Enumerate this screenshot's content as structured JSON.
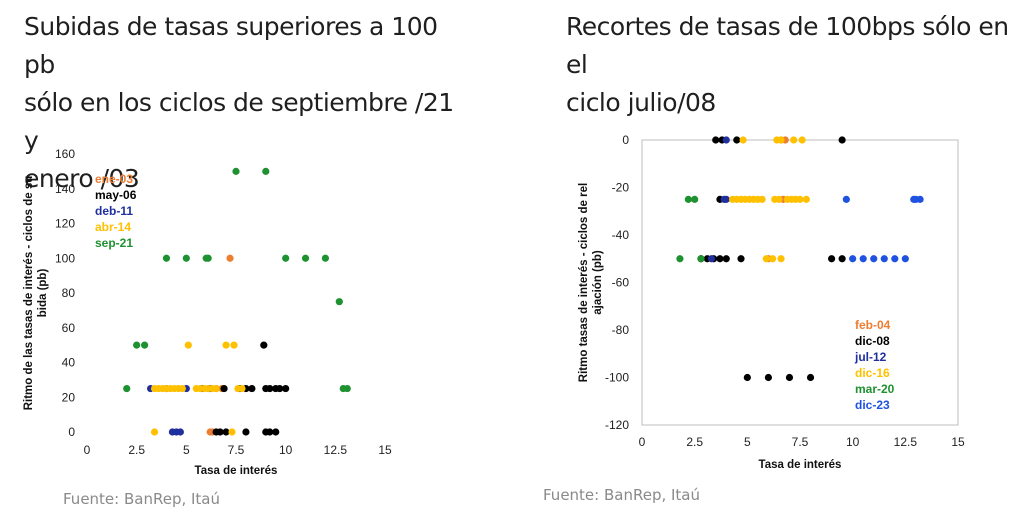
{
  "left": {
    "title": "Subidas de tasas superiores a 100 pb\nsólo en los ciclos de septiembre /21 y\nenero /03",
    "source": "Fuente: BanRep, Itaú",
    "chart_data": {
      "type": "scatter",
      "xlabel": "Tasa de interés",
      "ylabel": "Ritmo de las tasas de interés - ciclos de subida (pb)",
      "xlim": [
        0,
        15
      ],
      "ylim": [
        0,
        160
      ],
      "xticks": [
        "0",
        "2.5",
        "5",
        "7.5",
        "10",
        "12.5",
        "15"
      ],
      "yticks": [
        "0",
        "20",
        "40",
        "60",
        "80",
        "100",
        "120",
        "140",
        "160"
      ],
      "legend_position": "top-left",
      "series": [
        {
          "name": "ene-03",
          "color": "#ED7D31",
          "points": [
            [
              6.2,
              0
            ],
            [
              6.3,
              0
            ],
            [
              6.1,
              25
            ],
            [
              6.5,
              25
            ],
            [
              7.2,
              100
            ],
            [
              6.8,
              25
            ]
          ]
        },
        {
          "name": "may-06",
          "color": "#000000",
          "points": [
            [
              6.5,
              0
            ],
            [
              6.7,
              0
            ],
            [
              7.0,
              0
            ],
            [
              8.0,
              0
            ],
            [
              9.0,
              0
            ],
            [
              9.2,
              0
            ],
            [
              9.5,
              0
            ],
            [
              6.9,
              25
            ],
            [
              7.7,
              25
            ],
            [
              8.0,
              25
            ],
            [
              8.3,
              25
            ],
            [
              9.0,
              25
            ],
            [
              9.2,
              25
            ],
            [
              9.5,
              25
            ],
            [
              9.7,
              25
            ],
            [
              10.0,
              25
            ],
            [
              8.9,
              50
            ]
          ]
        },
        {
          "name": "deb-11",
          "color": "#1F2F9E",
          "points": [
            [
              4.3,
              0
            ],
            [
              4.5,
              0
            ],
            [
              4.7,
              0
            ],
            [
              3.2,
              25
            ],
            [
              4.0,
              25
            ],
            [
              5.0,
              25
            ],
            [
              5.8,
              25
            ],
            [
              6.2,
              25
            ]
          ]
        },
        {
          "name": "abr-14",
          "color": "#FFC000",
          "points": [
            [
              3.4,
              0
            ],
            [
              7.3,
              0
            ],
            [
              3.4,
              25
            ],
            [
              3.6,
              25
            ],
            [
              3.8,
              25
            ],
            [
              4.0,
              25
            ],
            [
              4.2,
              25
            ],
            [
              4.4,
              25
            ],
            [
              4.6,
              25
            ],
            [
              4.8,
              25
            ],
            [
              5.5,
              25
            ],
            [
              5.7,
              25
            ],
            [
              5.9,
              25
            ],
            [
              6.1,
              25
            ],
            [
              6.3,
              25
            ],
            [
              6.5,
              25
            ],
            [
              7.6,
              25
            ],
            [
              7.8,
              25
            ],
            [
              5.1,
              50
            ],
            [
              7.0,
              50
            ],
            [
              7.4,
              50
            ]
          ]
        },
        {
          "name": "sep-21",
          "color": "#1E9130",
          "points": [
            [
              2.0,
              25
            ],
            [
              2.5,
              50
            ],
            [
              2.9,
              50
            ],
            [
              4.0,
              100
            ],
            [
              5.0,
              100
            ],
            [
              6.0,
              100
            ],
            [
              6.1,
              100
            ],
            [
              7.5,
              150
            ],
            [
              9.0,
              150
            ],
            [
              10.0,
              100
            ],
            [
              11.0,
              100
            ],
            [
              12.0,
              100
            ],
            [
              12.7,
              75
            ],
            [
              12.9,
              25
            ],
            [
              13.1,
              25
            ]
          ]
        }
      ]
    }
  },
  "right": {
    "title": "Recortes de tasas de 100bps sólo en el\nciclo julio/08",
    "source": "Fuente: BanRep, Itaú",
    "chart_data": {
      "type": "scatter",
      "xlabel": "Tasa de interés",
      "ylabel": "Ritmo tasas de interés - ciclos de relajación (pb)",
      "xlim": [
        0,
        15
      ],
      "ylim": [
        -120,
        0
      ],
      "xticks": [
        "0",
        "2.5",
        "5",
        "7.5",
        "10",
        "12.5",
        "15"
      ],
      "yticks": [
        "0",
        "-20",
        "-40",
        "-60",
        "-80",
        "-100",
        "-120"
      ],
      "legend_position": "bottom-right",
      "series": [
        {
          "name": "feb-04",
          "color": "#ED7D31",
          "points": [
            [
              6.6,
              0
            ],
            [
              6.8,
              0
            ],
            [
              6.7,
              -25
            ],
            [
              6.0,
              -50
            ]
          ]
        },
        {
          "name": "dic-08",
          "color": "#000000",
          "points": [
            [
              3.5,
              0
            ],
            [
              3.8,
              0
            ],
            [
              4.5,
              0
            ],
            [
              9.5,
              0
            ],
            [
              3.7,
              -25
            ],
            [
              2.8,
              -50
            ],
            [
              3.1,
              -50
            ],
            [
              3.4,
              -50
            ],
            [
              3.7,
              -50
            ],
            [
              4.0,
              -50
            ],
            [
              4.7,
              -50
            ],
            [
              9.0,
              -50
            ],
            [
              9.5,
              -50
            ],
            [
              5.0,
              -100
            ],
            [
              6.0,
              -100
            ],
            [
              7.0,
              -100
            ],
            [
              8.0,
              -100
            ]
          ]
        },
        {
          "name": "jul-12",
          "color": "#1F2F9E",
          "points": [
            [
              4.0,
              0
            ],
            [
              4.0,
              -25
            ],
            [
              3.9,
              -25
            ],
            [
              3.3,
              -50
            ]
          ]
        },
        {
          "name": "dic-16",
          "color": "#FFC000",
          "points": [
            [
              4.8,
              0
            ],
            [
              6.4,
              0
            ],
            [
              6.6,
              0
            ],
            [
              7.2,
              0
            ],
            [
              7.6,
              0
            ],
            [
              4.3,
              -25
            ],
            [
              4.5,
              -25
            ],
            [
              4.7,
              -25
            ],
            [
              4.9,
              -25
            ],
            [
              5.1,
              -25
            ],
            [
              5.3,
              -25
            ],
            [
              5.5,
              -25
            ],
            [
              5.7,
              -25
            ],
            [
              6.3,
              -25
            ],
            [
              6.5,
              -25
            ],
            [
              6.9,
              -25
            ],
            [
              7.1,
              -25
            ],
            [
              7.3,
              -25
            ],
            [
              7.5,
              -25
            ],
            [
              7.8,
              -25
            ],
            [
              5.9,
              -50
            ],
            [
              6.2,
              -50
            ],
            [
              6.6,
              -50
            ]
          ]
        },
        {
          "name": "mar-20",
          "color": "#1E9130",
          "points": [
            [
              2.2,
              -25
            ],
            [
              2.5,
              -25
            ],
            [
              1.8,
              -50
            ],
            [
              2.8,
              -50
            ]
          ]
        },
        {
          "name": "dic-23",
          "color": "#1F52E0",
          "points": [
            [
              9.7,
              -25
            ],
            [
              13.2,
              -25
            ],
            [
              13.0,
              -25
            ],
            [
              10.0,
              -50
            ],
            [
              10.5,
              -50
            ],
            [
              11.0,
              -50
            ],
            [
              11.5,
              -50
            ],
            [
              12.0,
              -50
            ],
            [
              12.5,
              -50
            ],
            [
              12.9,
              -25
            ]
          ]
        }
      ]
    }
  }
}
